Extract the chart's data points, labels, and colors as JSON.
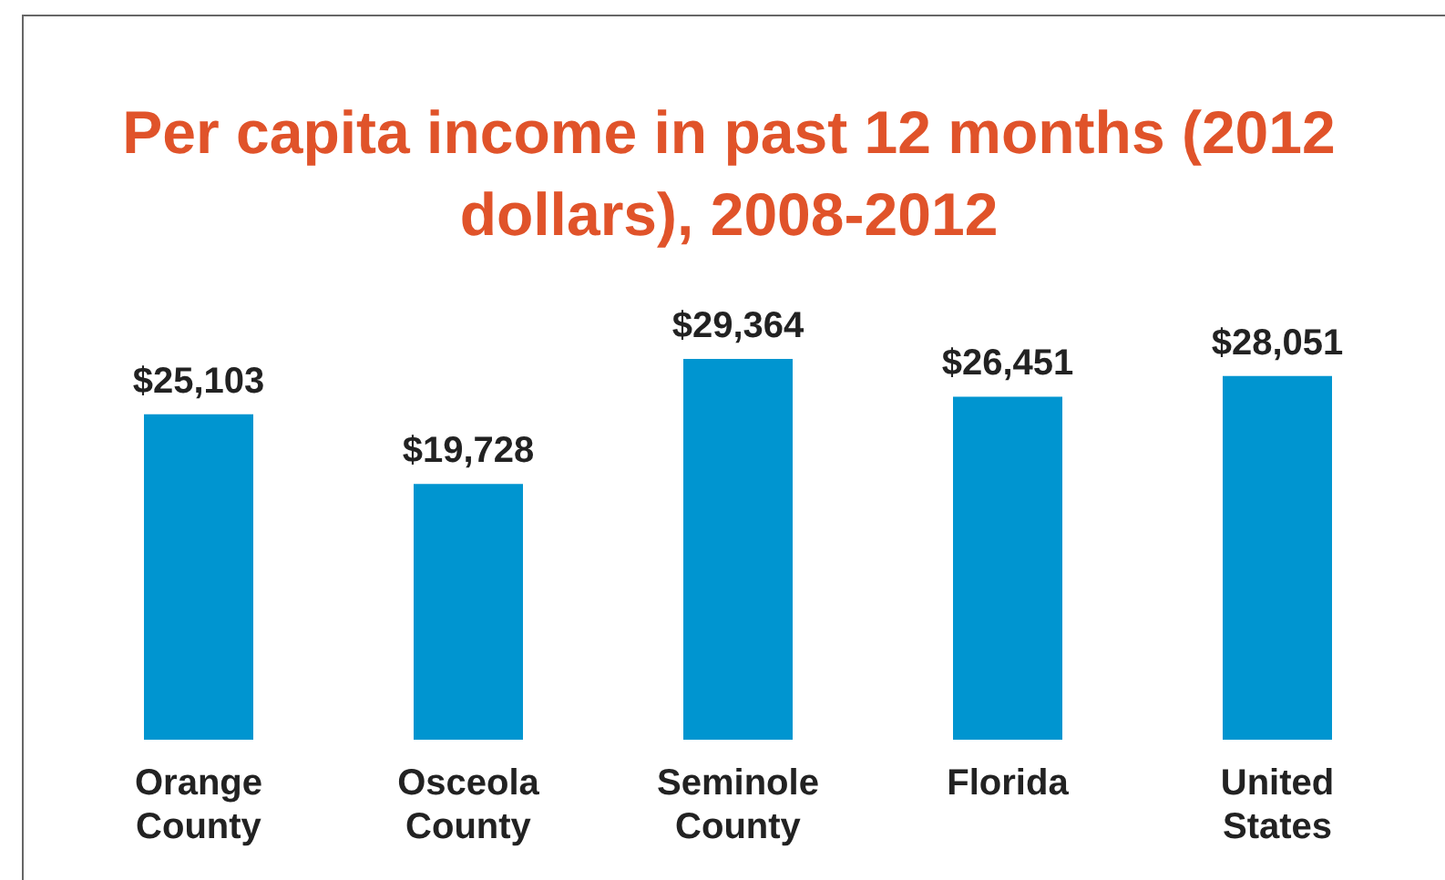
{
  "chart_data": {
    "type": "bar",
    "title": "Per capita income in past 12 months (2012 dollars), 2008-2012",
    "categories": [
      "Orange County",
      "Osceola County",
      "Seminole County",
      "Florida",
      "United States"
    ],
    "values": [
      25103,
      19728,
      29364,
      26451,
      28051
    ],
    "value_labels": [
      "$25,103",
      "$19,728",
      "$29,364",
      "$26,451",
      "$28,051"
    ],
    "color": "#0095d0",
    "grid": false,
    "legend": false
  }
}
